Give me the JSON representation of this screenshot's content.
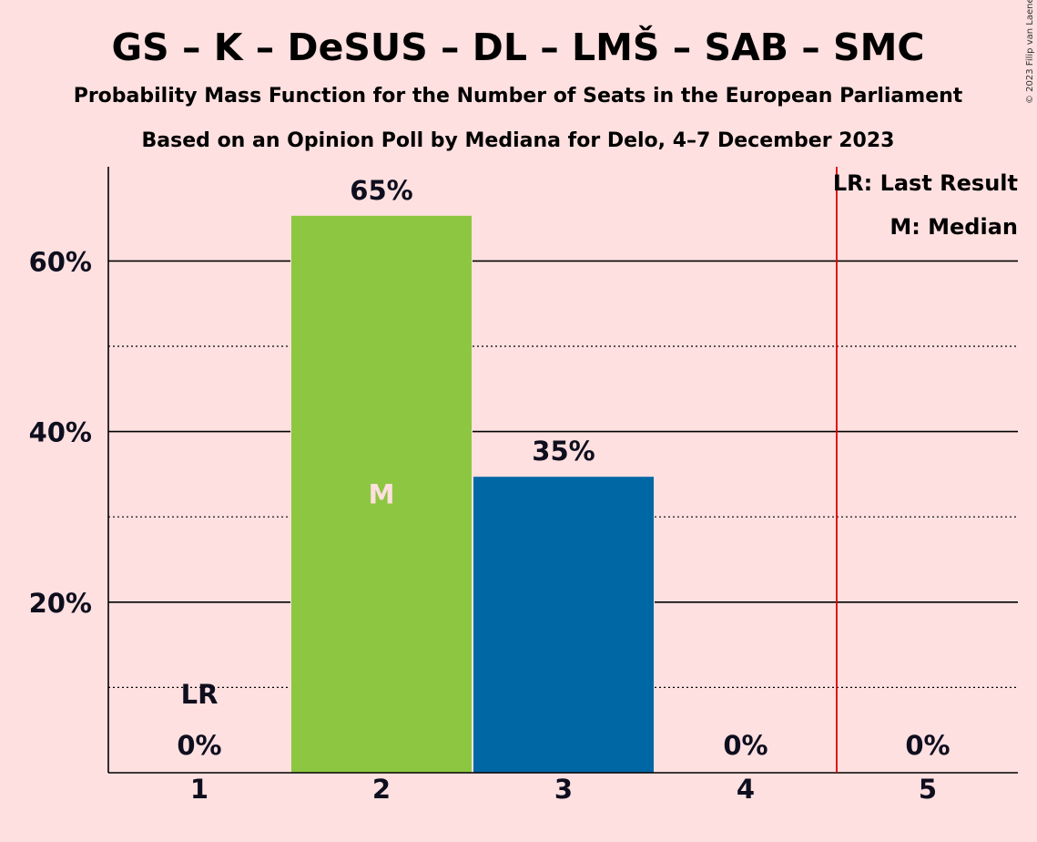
{
  "title": "GS – K – DeSUS – DL – LMŠ – SAB – SMC",
  "subtitle1": "Probability Mass Function for the Number of Seats in the European Parliament",
  "subtitle2": "Based on an Opinion Poll by Mediana for Delo, 4–7 December 2023",
  "copyright": "© 2023 Filip van Laenen",
  "legend": {
    "last_result": "LR: Last Result",
    "median": "M: Median"
  },
  "colors": {
    "background": "#FFE0E0",
    "green": "#8DC641",
    "blue": "#0067A5",
    "last_result_line": "#E00000",
    "text": "#0E0E1E"
  },
  "chart_data": {
    "type": "bar",
    "categories": [
      "1",
      "2",
      "3",
      "4",
      "5"
    ],
    "values": [
      0,
      65.3,
      34.7,
      0,
      0
    ],
    "data_labels": [
      "0%",
      "65%",
      "35%",
      "0%",
      "0%"
    ],
    "bar_colors": [
      "#8DC641",
      "#8DC641",
      "#0067A5",
      "#0067A5",
      "#0067A5"
    ],
    "yticks": [
      20,
      40,
      60
    ],
    "ytick_labels": [
      "20%",
      "40%",
      "60%"
    ],
    "minor_gridlines": [
      10,
      30,
      50
    ],
    "ylim": [
      0,
      70
    ],
    "median_seat": "2",
    "median_marker": "M",
    "last_result_seat": "1",
    "last_result_marker": "LR",
    "last_result_line_between": [
      "4",
      "5"
    ]
  }
}
